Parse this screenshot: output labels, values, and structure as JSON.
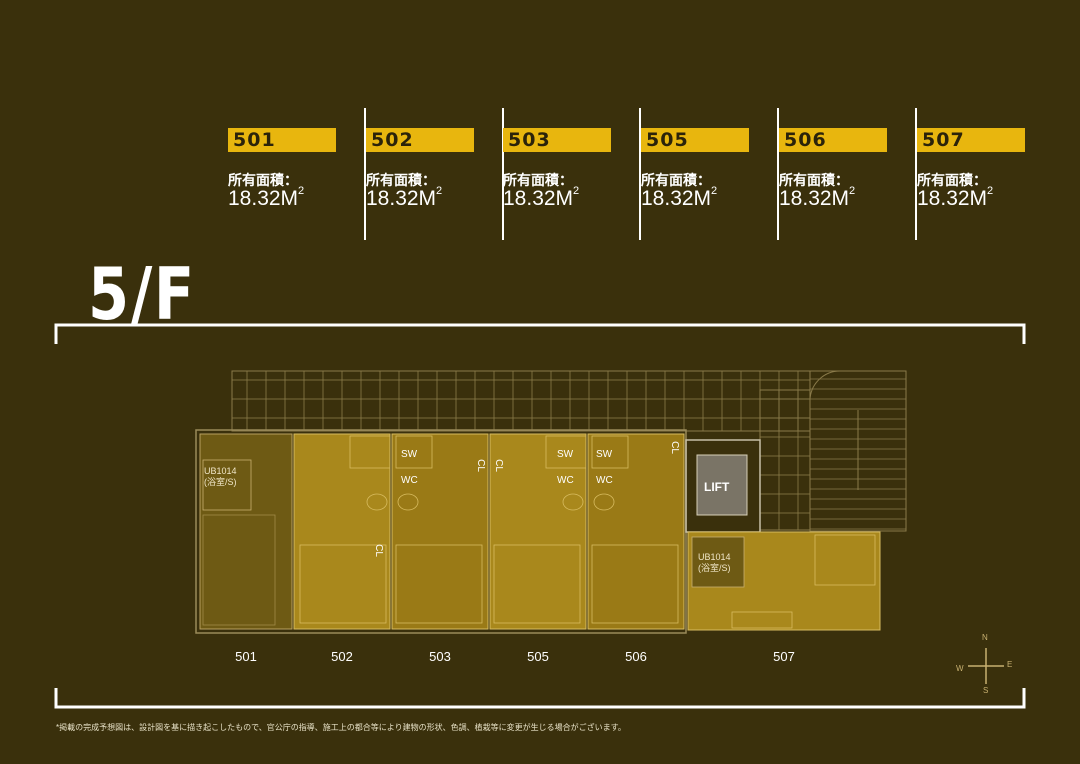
{
  "units": [
    {
      "no": "501",
      "label": "所有面積：",
      "value": "18.32M",
      "sup": "2"
    },
    {
      "no": "502",
      "label": "所有面積：",
      "value": "18.32M",
      "sup": "2"
    },
    {
      "no": "503",
      "label": "所有面積：",
      "value": "18.32M",
      "sup": "2"
    },
    {
      "no": "505",
      "label": "所有面積：",
      "value": "18.32M",
      "sup": "2"
    },
    {
      "no": "506",
      "label": "所有面積：",
      "value": "18.32M",
      "sup": "2"
    },
    {
      "no": "507",
      "label": "所有面積：",
      "value": "18.32M",
      "sup": "2"
    }
  ],
  "floor_title": "5/F",
  "plan": {
    "lift_label": "LIFT",
    "ub_label_1": "UB1014",
    "ub_label_2": "(浴室/S)",
    "sw": "SW",
    "wc": "WC",
    "cl": "CL"
  },
  "room_labels": [
    "501",
    "502",
    "503",
    "505",
    "506",
    "507"
  ],
  "compass": {
    "n": "N",
    "e": "E",
    "s": "S",
    "w": "W"
  },
  "footnote": "*掲載の完成予想図は、設計図を基に描き起こしたもので、官公庁の指導、施工上の都合等により建物の形状、色調、植栽等に変更が生じる場合がございます。",
  "colors": {
    "background": "#3a300c",
    "accent": "#e8b60e",
    "room_fill": "#a9881c",
    "room_fill_dark": "#6e5a14"
  }
}
